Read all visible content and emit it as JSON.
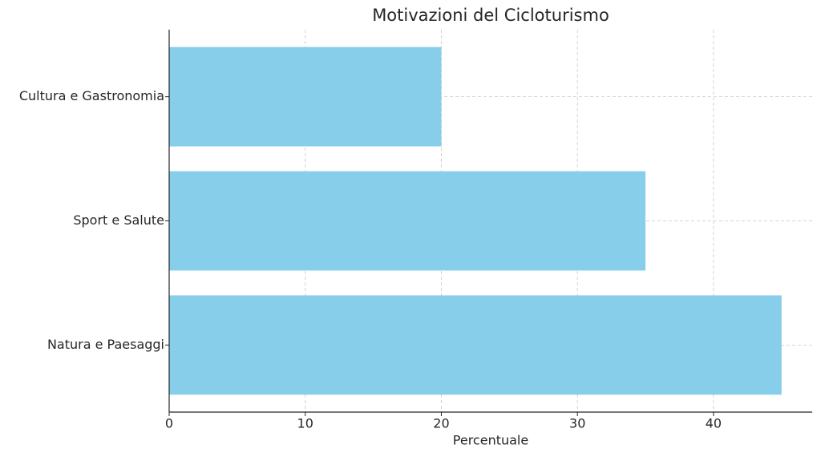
{
  "chart_data": {
    "type": "barh",
    "title": "Motivazioni del Cicloturismo",
    "xlabel": "Percentuale",
    "categories": [
      "Natura e Paesaggi",
      "Sport e Salute",
      "Cultura e Gastronomia"
    ],
    "values": [
      45,
      35,
      20
    ],
    "color": "#87ceeb",
    "xlim": [
      0,
      47.25
    ],
    "xticks": [
      0,
      10,
      20,
      30,
      40
    ],
    "grid": true
  }
}
